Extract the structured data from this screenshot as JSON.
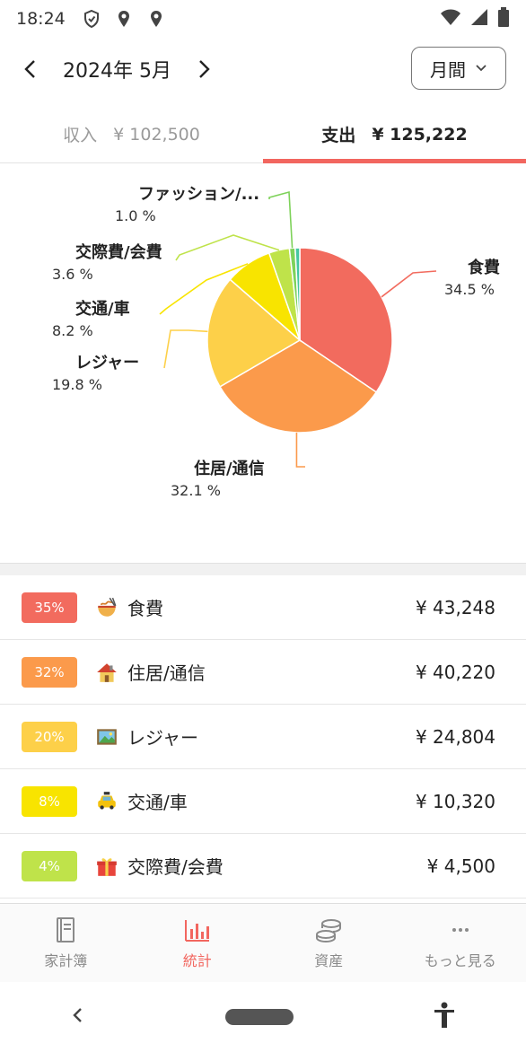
{
  "status": {
    "time": "18:24"
  },
  "header": {
    "month": "2024年 5月",
    "period_label": "月間"
  },
  "tabs": [
    {
      "label": "収入",
      "amount": "¥ 102,500"
    },
    {
      "label": "支出",
      "amount": "¥ 125,222"
    }
  ],
  "chart_data": {
    "type": "pie",
    "slices": [
      {
        "name": "食費",
        "percent_label": "34.5 %",
        "value": 34.5,
        "color": "#f26b5e",
        "icon": "ramen"
      },
      {
        "name": "住居/通信",
        "percent_label": "32.1 %",
        "value": 32.1,
        "color": "#fb9a4b",
        "icon": "house"
      },
      {
        "name": "レジャー",
        "percent_label": "19.8 %",
        "value": 19.8,
        "color": "#fdd049",
        "icon": "picture"
      },
      {
        "name": "交通/車",
        "percent_label": "8.2 %",
        "value": 8.2,
        "color": "#f8e400",
        "icon": "taxi"
      },
      {
        "name": "交際費/会費",
        "percent_label": "3.6 %",
        "value": 3.6,
        "color": "#bfe34a",
        "icon": "gift"
      },
      {
        "name": "ファッション/...",
        "percent_label": "1.0 %",
        "value": 1.0,
        "color": "#7ed25a",
        "icon": "coat"
      },
      {
        "name": "",
        "percent_label": "",
        "value": 0.8,
        "color": "#44c7a0",
        "icon": ""
      }
    ]
  },
  "list": [
    {
      "badge": "35%",
      "badge_color": "#f26b5e",
      "icon": "ramen",
      "label": "食費",
      "amount": "¥ 43,248"
    },
    {
      "badge": "32%",
      "badge_color": "#fb9a4b",
      "icon": "house",
      "label": "住居/通信",
      "amount": "¥ 40,220"
    },
    {
      "badge": "20%",
      "badge_color": "#fdd049",
      "icon": "picture",
      "label": "レジャー",
      "amount": "¥ 24,804"
    },
    {
      "badge": "8%",
      "badge_color": "#f8e400",
      "icon": "taxi",
      "label": "交通/車",
      "amount": "¥ 10,320"
    },
    {
      "badge": "4%",
      "badge_color": "#bfe34a",
      "icon": "gift",
      "label": "交際費/会費",
      "amount": "¥ 4,500"
    }
  ],
  "bottom_nav": [
    {
      "label": "家計簿",
      "icon": "book-icon"
    },
    {
      "label": "統計",
      "icon": "bar-chart-icon"
    },
    {
      "label": "資産",
      "icon": "coins-icon"
    },
    {
      "label": "もっと見る",
      "icon": "more-icon"
    }
  ]
}
